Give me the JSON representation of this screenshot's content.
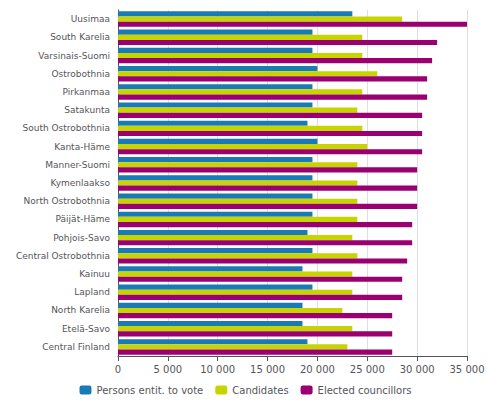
{
  "chart_data": {
    "type": "bar",
    "orientation": "horizontal",
    "categories": [
      "Uusimaa",
      "South Karelia",
      "Varsinais-Suomi",
      "Ostrobothnia",
      "Pirkanmaa",
      "Satakunta",
      "South Ostrobothnia",
      "Kanta-Häme",
      "Manner-Suomi",
      "Kymenlaakso",
      "North Ostrobothnia",
      "Päijät-Häme",
      "Pohjois-Savo",
      "Central Ostrobothnia",
      "Kainuu",
      "Lapland",
      "North Karelia",
      "Etelä-Savo",
      "Central Finland"
    ],
    "series": [
      {
        "name": "Persons entit. to vote",
        "color": "#1a7ab5",
        "values": [
          23500,
          19500,
          19500,
          20000,
          19500,
          19500,
          19000,
          20000,
          19500,
          19500,
          19500,
          19500,
          19000,
          19500,
          18500,
          19500,
          18500,
          18500,
          19000
        ]
      },
      {
        "name": "Candidates",
        "color": "#c8d400",
        "values": [
          28500,
          24500,
          24500,
          26000,
          24500,
          24000,
          24500,
          25000,
          24000,
          24000,
          24000,
          24000,
          23500,
          24000,
          23500,
          23500,
          22500,
          23500,
          23000
        ]
      },
      {
        "name": "Elected councillors",
        "color": "#9b0071",
        "values": [
          35000,
          32000,
          31500,
          31000,
          31000,
          30500,
          30500,
          30500,
          30000,
          30000,
          30000,
          29500,
          29500,
          29000,
          28500,
          28500,
          27500,
          27500,
          27500
        ]
      }
    ],
    "xlim": [
      0,
      35000
    ],
    "xticks": [
      0,
      {
        "value": 5000,
        "label": "5 000"
      },
      {
        "value": 10000,
        "label": "10 000"
      },
      {
        "value": 15000,
        "label": "15 000"
      },
      {
        "value": 20000,
        "label": "20 000"
      },
      {
        "value": 25000,
        "label": "25 000"
      },
      {
        "value": 30000,
        "label": "30 000"
      },
      {
        "value": 35000,
        "label": "35 000"
      }
    ],
    "grid": true,
    "legend": "bottom"
  }
}
